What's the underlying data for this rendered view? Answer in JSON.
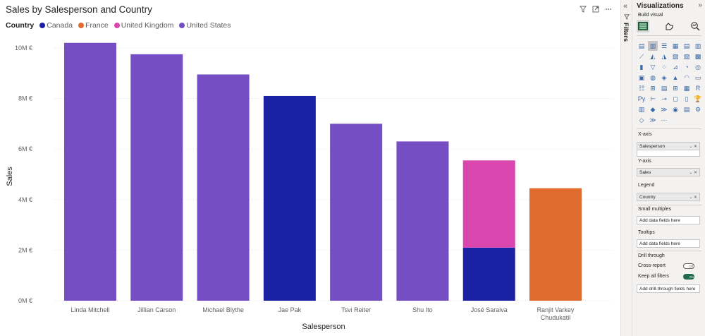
{
  "visual": {
    "title": "Sales by Salesperson and Country",
    "legend_title": "Country",
    "legend": [
      {
        "name": "Canada",
        "color": "#1a22a3"
      },
      {
        "name": "France",
        "color": "#e06b2f"
      },
      {
        "name": "United Kingdom",
        "color": "#d946ad"
      },
      {
        "name": "United States",
        "color": "#744ec2"
      }
    ],
    "header_icons": [
      "filter-icon",
      "focus-mode-icon",
      "more-options-icon"
    ]
  },
  "chart_data": {
    "type": "bar",
    "stacked": true,
    "xlabel": "Salesperson",
    "ylabel": "Sales",
    "ylim": [
      0,
      10500000
    ],
    "y_ticks": [
      0,
      2000000,
      4000000,
      6000000,
      8000000,
      10000000
    ],
    "y_tick_labels": [
      "0M €",
      "2M €",
      "4M €",
      "6M €",
      "8M €",
      "10M €"
    ],
    "categories": [
      "Linda Mitchell",
      "Jillian Carson",
      "Michael Blythe",
      "Jae Pak",
      "Tsvi Reiter",
      "Shu Ito",
      "José Saraiva",
      "Ranjit Varkey Chudukatil"
    ],
    "category_lines": [
      [
        "Linda Mitchell"
      ],
      [
        "Jillian Carson"
      ],
      [
        "Michael Blythe"
      ],
      [
        "Jae Pak"
      ],
      [
        "Tsvi Reiter"
      ],
      [
        "Shu Ito"
      ],
      [
        "José Saraiva"
      ],
      [
        "Ranjit Varkey",
        "Chudukatil"
      ]
    ],
    "series": [
      {
        "name": "Canada",
        "color": "#1a22a3",
        "values": [
          0,
          0,
          0,
          8100000,
          0,
          0,
          2100000,
          0
        ]
      },
      {
        "name": "France",
        "color": "#e06b2f",
        "values": [
          0,
          0,
          0,
          0,
          0,
          0,
          0,
          4450000
        ]
      },
      {
        "name": "United Kingdom",
        "color": "#d946ad",
        "values": [
          0,
          0,
          0,
          0,
          0,
          0,
          3450000,
          0
        ]
      },
      {
        "name": "United States",
        "color": "#744ec2",
        "values": [
          10200000,
          9750000,
          8950000,
          0,
          7000000,
          6300000,
          0,
          0
        ]
      }
    ],
    "grid": true,
    "legend_position": "top-left"
  },
  "filters_pane": {
    "label": "Filters"
  },
  "viz_pane": {
    "title": "Visualizations",
    "build_visual_label": "Build visual",
    "tabs": [
      "build-visual-icon",
      "format-visual-icon",
      "analytics-icon"
    ],
    "more_visuals": "···",
    "wells": {
      "x_axis_label": "X-axis",
      "x_axis_field": "Salesperson",
      "y_axis_label": "Y-axis",
      "y_axis_field": "Sales",
      "legend_label": "Legend",
      "legend_field": "Country",
      "small_multiples_label": "Small multiples",
      "small_multiples_placeholder": "Add data fields here",
      "tooltips_label": "Tooltips",
      "tooltips_placeholder": "Add data fields here",
      "drill_through_label": "Drill through",
      "cross_report_label": "Cross-report",
      "cross_report_state": "Off",
      "keep_all_filters_label": "Keep all filters",
      "keep_all_filters_state": "On",
      "drill_placeholder": "Add drill-through fields here"
    }
  }
}
